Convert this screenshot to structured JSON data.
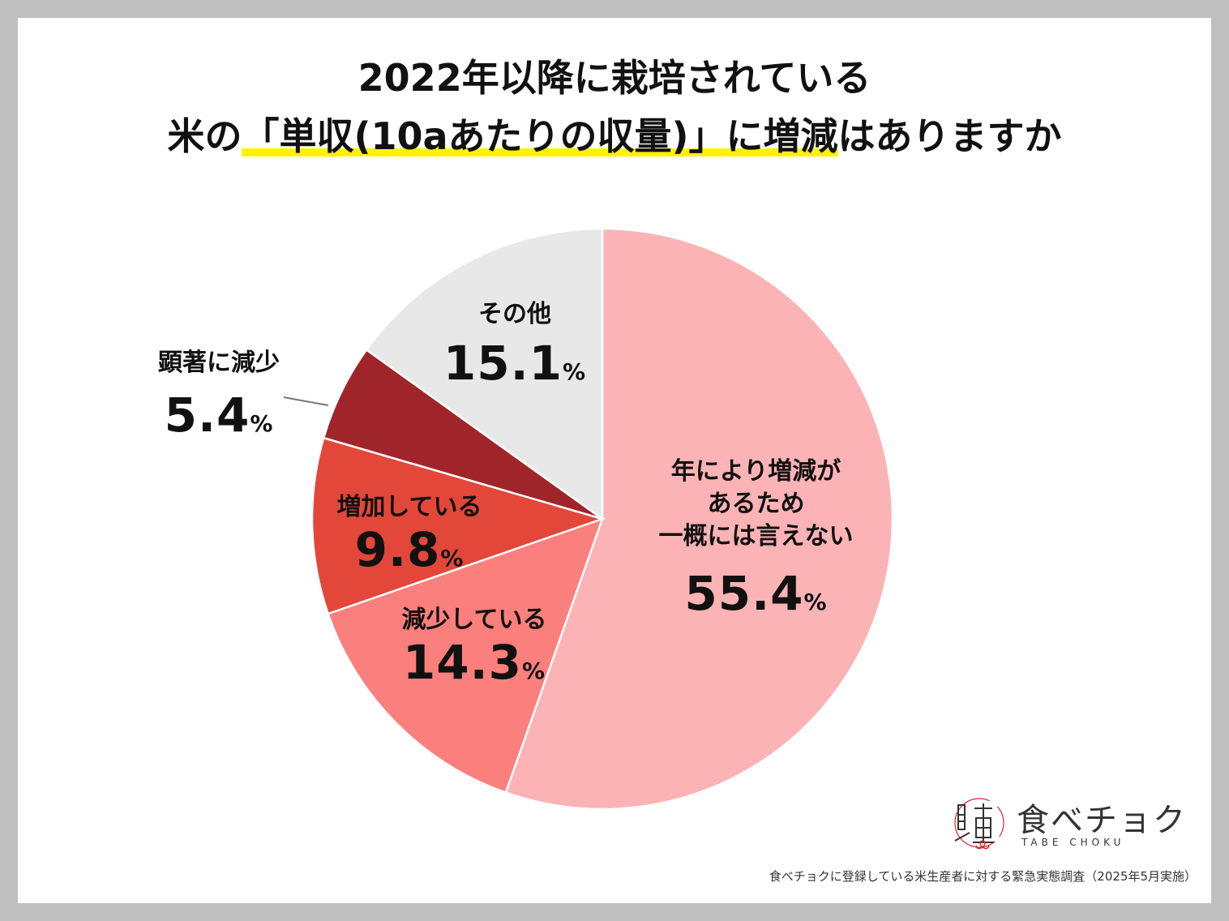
{
  "title": {
    "line1": "2022年以降に栽培されている",
    "line2_pre": "米の",
    "line2_highlight": "「単収(10aあたりの収量)」に増減",
    "line2_post": "はありますか"
  },
  "colors": {
    "border": "#bfbfbf",
    "highlight": "#fff200",
    "slice_vary": "#fcb3b5",
    "slice_decrease": "#fb7f7d",
    "slice_increase": "#e2473a",
    "slice_big_decrease": "#a0252a",
    "slice_other": "#e8e8e8"
  },
  "chart_data": {
    "type": "pie",
    "start_angle_deg": 0,
    "direction": "clockwise",
    "slices": [
      {
        "name": "年により増減があるため一概には言えない",
        "value": 55.4,
        "label_lines": [
          "年により増減が",
          "あるため",
          "一概には言えない"
        ],
        "value_text": "55.4",
        "unit": "%",
        "color": "#fcb3b5"
      },
      {
        "name": "減少している",
        "value": 14.3,
        "label_lines": [
          "減少している"
        ],
        "value_text": "14.3",
        "unit": "%",
        "color": "#fb7f7d"
      },
      {
        "name": "増加している",
        "value": 9.8,
        "label_lines": [
          "増加している"
        ],
        "value_text": "9.8",
        "unit": "%",
        "color": "#e2473a"
      },
      {
        "name": "顕著に減少",
        "value": 5.4,
        "label_lines": [
          "顕著に減少"
        ],
        "value_text": "5.4",
        "unit": "%",
        "color": "#a0252a"
      },
      {
        "name": "その他",
        "value": 15.1,
        "label_lines": [
          "その他"
        ],
        "value_text": "15.1",
        "unit": "%",
        "color": "#e8e8e8"
      }
    ]
  },
  "logo": {
    "text_jp": "食べチョク",
    "text_en": "TABE CHOKU",
    "mark_chars": "良 直"
  },
  "footer": {
    "source": "食べチョクに登録している米生産者に対する緊急実態調査（2025年5月実施）"
  }
}
